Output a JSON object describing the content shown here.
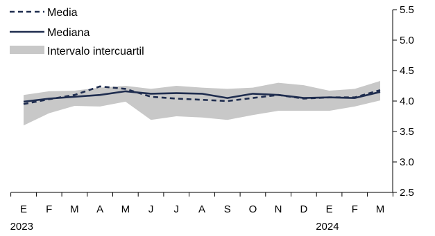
{
  "chart_data": {
    "type": "line",
    "categories": [
      "E",
      "F",
      "M",
      "A",
      "M",
      "J",
      "J",
      "A",
      "S",
      "O",
      "N",
      "D",
      "E",
      "F",
      "M"
    ],
    "years": [
      {
        "label": "2023",
        "index": 0
      },
      {
        "label": "2024",
        "index": 12
      }
    ],
    "ylim": [
      2.5,
      5.5
    ],
    "yticks": [
      "5.5",
      "5.0",
      "4.5",
      "4.0",
      "3.5",
      "3.0",
      "2.5"
    ],
    "ytick_values": [
      5.5,
      5.0,
      4.5,
      4.0,
      3.5,
      3.0,
      2.5
    ],
    "y_axis_side": "right",
    "grid": false,
    "legend_position": "top-left",
    "series": [
      {
        "name": "Media",
        "style": "dashed",
        "color": "#1f2d4f",
        "values": [
          3.95,
          4.03,
          4.1,
          4.24,
          4.2,
          4.07,
          4.04,
          4.02,
          4.0,
          4.05,
          4.1,
          4.04,
          4.06,
          4.06,
          4.18
        ]
      },
      {
        "name": "Mediana",
        "style": "solid",
        "color": "#1f2d4f",
        "values": [
          3.99,
          4.04,
          4.07,
          4.1,
          4.16,
          4.12,
          4.13,
          4.12,
          4.05,
          4.12,
          4.1,
          4.05,
          4.06,
          4.05,
          4.15
        ]
      }
    ],
    "band": {
      "name": "Intervalo intercuartil",
      "color": "#c8c8c8",
      "upper": [
        4.1,
        4.16,
        4.17,
        4.22,
        4.25,
        4.2,
        4.25,
        4.22,
        4.2,
        4.22,
        4.3,
        4.26,
        4.17,
        4.2,
        4.33
      ],
      "lower": [
        3.6,
        3.8,
        3.92,
        3.91,
        3.99,
        3.69,
        3.75,
        3.73,
        3.69,
        3.77,
        3.84,
        3.84,
        3.84,
        3.91,
        4.01
      ]
    }
  }
}
